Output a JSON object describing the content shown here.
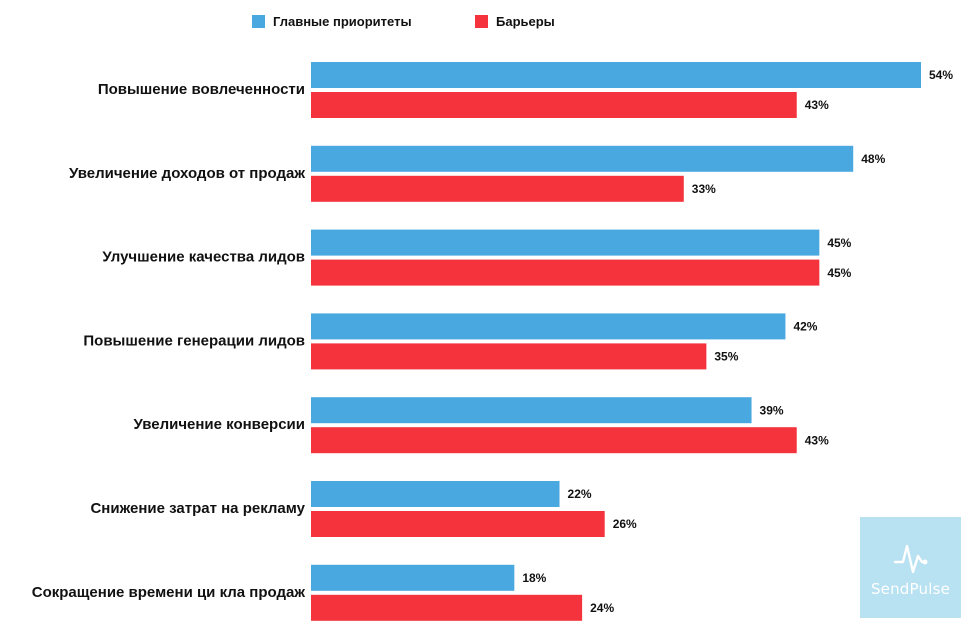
{
  "chart_data": {
    "type": "bar",
    "orientation": "horizontal",
    "title": "",
    "xlabel": "",
    "ylabel": "",
    "xlim": [
      0,
      54
    ],
    "legend_position": "top-left",
    "categories": [
      "Повышение вовлеченности",
      "Увеличение доходов от продаж",
      "Улучшение качества лидов",
      "Повышение генерации лидов",
      "Увеличение конверсии",
      "Снижение затрат на рекламу",
      "Сокращение времени ци кла продаж"
    ],
    "series": [
      {
        "name": "Главные приоритеты",
        "color": "#4aa8e0",
        "values": [
          54,
          48,
          45,
          42,
          39,
          22,
          18
        ],
        "labels": [
          "54%",
          "48%",
          "45%",
          "42%",
          "39%",
          "22%",
          "18%"
        ]
      },
      {
        "name": "Барьеры",
        "color": "#f4333c",
        "values": [
          43,
          33,
          45,
          35,
          43,
          26,
          24
        ],
        "labels": [
          "43%",
          "33%",
          "45%",
          "35%",
          "43%",
          "26%",
          "24%"
        ]
      }
    ]
  },
  "legend": {
    "priorities_label": "Главные приоритеты",
    "barriers_label": "Барьеры"
  },
  "logo": {
    "text": "SendPulse",
    "icon": "pulse-icon",
    "background": "#b8e1f1"
  }
}
